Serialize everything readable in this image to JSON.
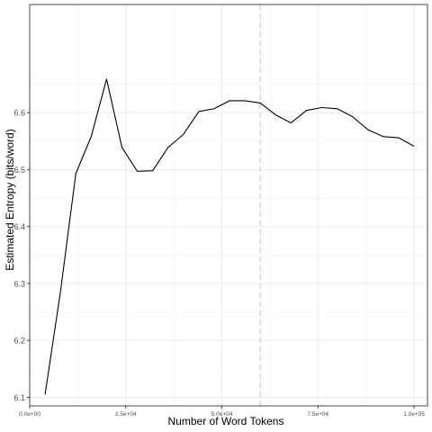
{
  "chart_data": {
    "type": "line",
    "xlabel": "Number of Word Tokens",
    "ylabel": "Estimated Entropy (bits/word)",
    "xlim": [
      0,
      103500
    ],
    "ylim": [
      6.085,
      6.79
    ],
    "x_ticks": [
      {
        "value": 0,
        "label": "0.0e+00"
      },
      {
        "value": 25000,
        "label": "2.5e+04"
      },
      {
        "value": 50000,
        "label": "5.0e+04"
      },
      {
        "value": 75000,
        "label": "7.5e+04"
      },
      {
        "value": 100000,
        "label": "1.0e+05"
      }
    ],
    "y_ticks": [
      {
        "value": 6.1,
        "label": "6.1"
      },
      {
        "value": 6.2,
        "label": "6.2"
      },
      {
        "value": 6.3,
        "label": "6.3"
      },
      {
        "value": 6.4,
        "label": "6.4"
      },
      {
        "value": 6.5,
        "label": "6.5"
      },
      {
        "value": 6.6,
        "label": "6.6"
      }
    ],
    "grid": true,
    "reference_line": {
      "x": 60000,
      "style": "dashed",
      "color": "#d3d3d3"
    },
    "series": [
      {
        "color": "#000000",
        "x": [
          4000,
          8000,
          12000,
          16000,
          20000,
          24000,
          28000,
          32000,
          36000,
          40000,
          44000,
          48000,
          52000,
          56000,
          60000,
          64000,
          68000,
          72000,
          76000,
          80000,
          84000,
          88000,
          92000,
          96000,
          100000
        ],
        "y": [
          6.105,
          6.285,
          6.493,
          6.558,
          6.659,
          6.539,
          6.497,
          6.498,
          6.539,
          6.562,
          6.602,
          6.607,
          6.621,
          6.621,
          6.617,
          6.596,
          6.582,
          6.604,
          6.609,
          6.607,
          6.593,
          6.57,
          6.558,
          6.556,
          6.541
        ]
      }
    ]
  }
}
